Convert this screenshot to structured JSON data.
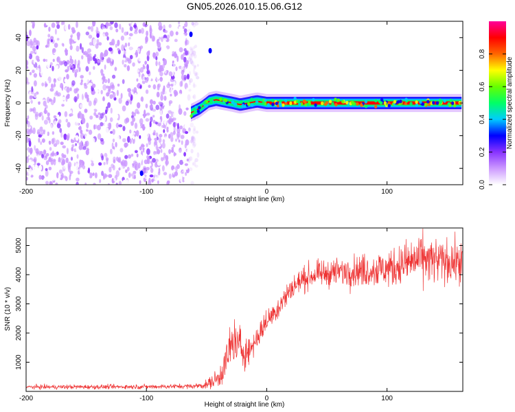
{
  "title": "GN05.2026.010.15.06.G12",
  "colors": {
    "line": "#ee3333",
    "frame": "#000000",
    "background": "#ffffff"
  },
  "chart_data": [
    {
      "type": "heatmap",
      "name": "spectrogram",
      "xlabel": "Height of straight line (km)",
      "ylabel": "Frequency (Hz)",
      "xlim": [
        -200,
        163
      ],
      "ylim": [
        -50,
        50
      ],
      "xticks": [
        -200,
        -100,
        0,
        100
      ],
      "yticks": [
        -40,
        -20,
        0,
        20,
        40
      ],
      "noise_region_x": [
        -200,
        -65
      ],
      "signal_track": {
        "x": [
          -63,
          -55,
          -48,
          -42,
          -35,
          -28,
          -22,
          -15,
          -8,
          0,
          20,
          40,
          60,
          80,
          100,
          120,
          140,
          163
        ],
        "freq_hz": [
          -6,
          -3,
          1,
          2,
          1,
          0,
          -1,
          0,
          1,
          0,
          0,
          0,
          0,
          0,
          0,
          0,
          0,
          0
        ]
      },
      "colorbar": {
        "label": "Normalized spectral amplitude",
        "range": [
          0.0,
          1.0
        ],
        "ticks": [
          "0.0",
          "0.2",
          "0.4",
          "0.6",
          "0.8"
        ],
        "tick_values": [
          0.0,
          0.2,
          0.4,
          0.6,
          0.8
        ],
        "colormap": [
          "#ffffff",
          "#cc99ff",
          "#8833ff",
          "#0000ff",
          "#00ccff",
          "#00ff66",
          "#66ff00",
          "#ffff00",
          "#ff6600",
          "#ff0000",
          "#ff0099"
        ]
      }
    },
    {
      "type": "line",
      "name": "snr",
      "xlabel": "Height of straight line (km)",
      "ylabel": "SNR (10 * v/v)",
      "xlim": [
        -200,
        163
      ],
      "ylim": [
        0,
        5600
      ],
      "xticks": [
        -200,
        -100,
        0,
        100
      ],
      "yticks": [
        1000,
        2000,
        3000,
        4000,
        5000
      ],
      "series": [
        {
          "name": "SNR",
          "x": [
            -200,
            -150,
            -100,
            -60,
            -50,
            -40,
            -35,
            -28,
            -22,
            -15,
            -10,
            -5,
            0,
            10,
            20,
            30,
            40,
            60,
            80,
            100,
            110,
            120,
            130,
            140,
            150,
            163
          ],
          "mean": [
            150,
            155,
            160,
            180,
            230,
            450,
            900,
            1700,
            1500,
            1350,
            1700,
            2050,
            2400,
            2900,
            3500,
            3850,
            4000,
            4100,
            4150,
            4200,
            4300,
            4450,
            4550,
            4450,
            4450,
            4400
          ],
          "noise": [
            55,
            55,
            55,
            60,
            110,
            250,
            400,
            650,
            550,
            350,
            300,
            280,
            280,
            300,
            300,
            300,
            300,
            340,
            400,
            450,
            500,
            560,
            600,
            560,
            520,
            480
          ]
        }
      ]
    }
  ]
}
